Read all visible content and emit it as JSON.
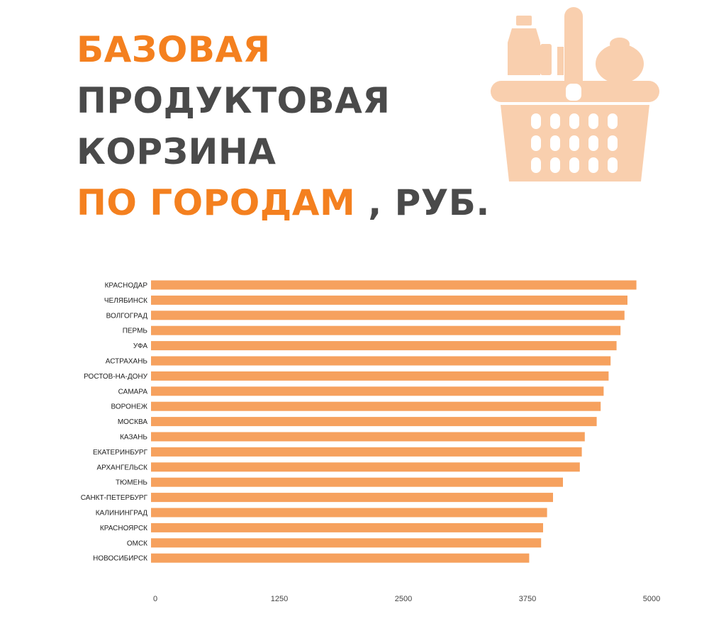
{
  "title": {
    "line1": "БАЗОВАЯ",
    "line2": "ПРОДУКТОВАЯ",
    "line3": "КОРЗИНА",
    "line4_accent": "ПО ГОРОДАМ",
    "line4_suffix": ", РУБ."
  },
  "colors": {
    "accent": "#f4801f",
    "bar": "#f6a15e",
    "text_dark": "#4a4a4a",
    "basket": "#f9cfae"
  },
  "basket_icon": "shopping-basket-icon",
  "chart_data": {
    "type": "bar",
    "orientation": "horizontal",
    "categories": [
      "КРАСНОДАР",
      "ЧЕЛЯБИНСК",
      "ВОЛГОГРАД",
      "ПЕРМЬ",
      "УФА",
      "АСТРАХАНЬ",
      "РОСТОВ-НА-ДОНУ",
      "САМАРА",
      "ВОРОНЕЖ",
      "МОСКВА",
      "КАЗАНЬ",
      "ЕКАТЕРИНБУРГ",
      "АРХАНГЕЛЬСК",
      "ТЮМЕНЬ",
      "САНКТ-ПЕТЕРБУРГ",
      "КАЛИНИНГРАД",
      "КРАСНОЯРСК",
      "ОМСК",
      "НОВОСИБИРСК"
    ],
    "values": [
      4890,
      4800,
      4770,
      4730,
      4690,
      4630,
      4610,
      4560,
      4530,
      4490,
      4370,
      4340,
      4320,
      4150,
      4050,
      3990,
      3950,
      3930,
      3810
    ],
    "xticks": [
      "0",
      "1250",
      "2500",
      "3750",
      "5000"
    ],
    "xlim": [
      0,
      5000
    ],
    "grid": false,
    "legend": "none"
  }
}
